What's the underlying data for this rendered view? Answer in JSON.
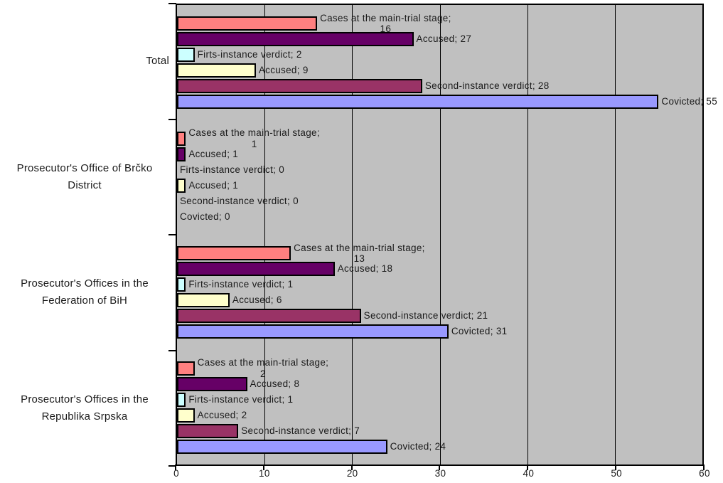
{
  "chart_data": {
    "type": "bar",
    "orientation": "horizontal",
    "title": "",
    "xlabel": "",
    "ylabel": "",
    "xlim": [
      0,
      60
    ],
    "x_ticks": [
      "0",
      "10",
      "20",
      "30",
      "40",
      "50",
      "60"
    ],
    "grid": true,
    "legend": "none",
    "plot_bg_color": "#C0C0C0",
    "gridline_color": "#000000",
    "bar_border_color": "#000000",
    "label_separator": "; ",
    "categories": [
      "Total",
      "Prosecutor's Office of Brčko District",
      "Prosecutor's Offices in the Federation of BiH",
      "Prosecutor's Offices in the Republika Srpska"
    ],
    "series": [
      {
        "name": "Cases at the main-trial stage",
        "color": "#FF8080",
        "wrap_label": true,
        "values": [
          16,
          1,
          13,
          2
        ]
      },
      {
        "name": "Accused",
        "color": "#660066",
        "wrap_label": false,
        "values": [
          27,
          1,
          18,
          8
        ]
      },
      {
        "name": "Firts-instance verdict",
        "color": "#CCFFFF",
        "wrap_label": false,
        "values": [
          2,
          0,
          1,
          1
        ]
      },
      {
        "name": "Accused",
        "color": "#FFFFCC",
        "wrap_label": false,
        "values": [
          9,
          1,
          6,
          2
        ]
      },
      {
        "name": "Second-instance verdict",
        "color": "#993366",
        "wrap_label": false,
        "values": [
          28,
          0,
          21,
          7
        ]
      },
      {
        "name": "Covicted",
        "color": "#9999FF",
        "wrap_label": false,
        "values": [
          55,
          0,
          31,
          24
        ]
      }
    ]
  }
}
